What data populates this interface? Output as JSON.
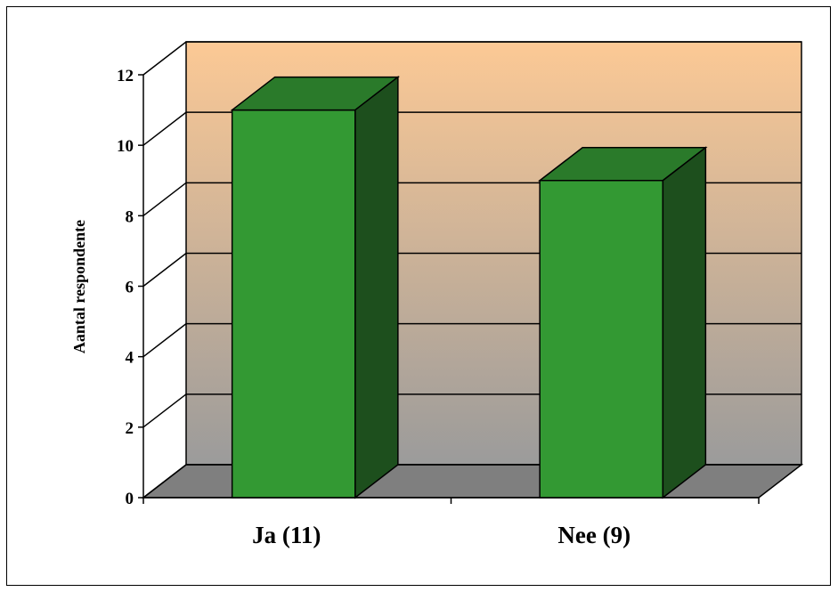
{
  "chart_data": {
    "type": "bar",
    "categories": [
      "Ja (11)",
      "Nee (9)"
    ],
    "values": [
      11,
      9
    ],
    "title": "",
    "xlabel": "",
    "ylabel": "Aantal respondente",
    "ylim": [
      0,
      12
    ],
    "yticks": [
      0,
      2,
      4,
      6,
      8,
      10,
      12
    ],
    "grid": true,
    "legend": "none",
    "three_d": true,
    "colors": {
      "bar_front": "#339933",
      "bar_top": "#2a7a2a",
      "bar_side": "#1d4f1d",
      "wall_top": "#fcc995",
      "wall_bottom": "#9b9b9b",
      "floor": "#7f7f7f"
    }
  }
}
